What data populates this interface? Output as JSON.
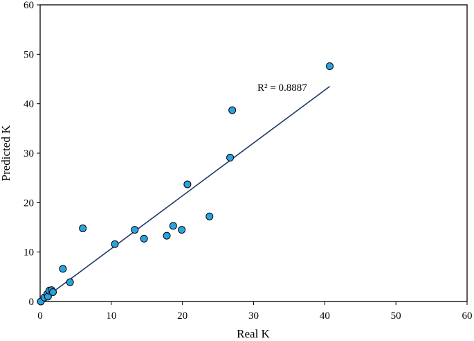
{
  "chart_data": {
    "type": "scatter",
    "title": "",
    "xlabel": "Real K",
    "ylabel": "Predicted K",
    "xlim": [
      0,
      60
    ],
    "ylim": [
      0,
      60
    ],
    "xticks": [
      0,
      10,
      20,
      30,
      40,
      50,
      60
    ],
    "yticks": [
      0,
      10,
      20,
      30,
      40,
      50,
      60
    ],
    "grid": false,
    "legend": "none",
    "series": [
      {
        "marker_color": "#29a3e0",
        "x": [
          0.1,
          0.6,
          1.0,
          1.1,
          1.3,
          1.6,
          1.8,
          3.2,
          4.2,
          6.0,
          10.5,
          13.3,
          14.6,
          17.8,
          18.7,
          19.9,
          20.7,
          23.8,
          26.7,
          27.0,
          40.7
        ],
        "y": [
          0.0,
          0.8,
          1.5,
          1.0,
          2.2,
          2.3,
          1.9,
          6.6,
          3.9,
          14.8,
          11.6,
          14.5,
          12.7,
          13.3,
          15.3,
          14.5,
          23.7,
          17.2,
          29.1,
          38.7,
          47.6
        ]
      }
    ],
    "trendline": {
      "x_start": 0.0,
      "y_start": 0.0,
      "x_end": 40.7,
      "y_end": 43.5,
      "color": "#1f3864",
      "label": "R² = 0.8887"
    }
  }
}
